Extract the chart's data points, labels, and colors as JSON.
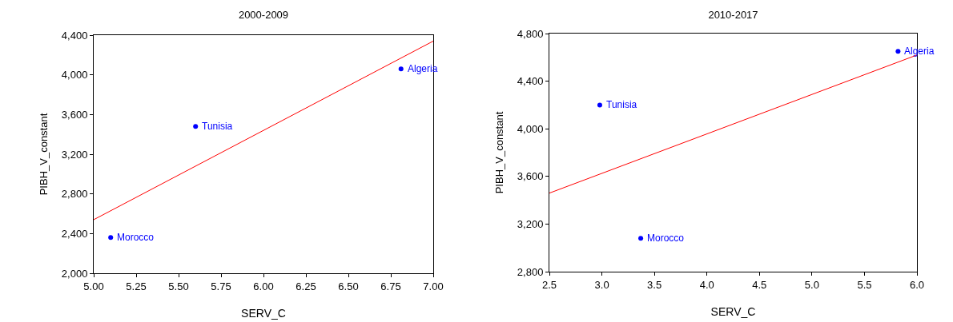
{
  "chart_data": [
    {
      "type": "scatter",
      "title": "2000-2009",
      "xlabel": "SERV_C",
      "ylabel": "PIBH_V_constant",
      "xlim": [
        5,
        7
      ],
      "xticks": [
        {
          "value": 5,
          "label": "5.00"
        },
        {
          "value": 5.25,
          "label": "5.25"
        },
        {
          "value": 5.5,
          "label": "5.50"
        },
        {
          "value": 5.75,
          "label": "5.75"
        },
        {
          "value": 6,
          "label": "6.00"
        },
        {
          "value": 6.25,
          "label": "6.25"
        },
        {
          "value": 6.5,
          "label": "6.50"
        },
        {
          "value": 6.75,
          "label": "6.75"
        },
        {
          "value": 7,
          "label": "7.00"
        }
      ],
      "ylim": [
        2000,
        4400
      ],
      "yticks": [
        {
          "value": 2000,
          "label": "2,000"
        },
        {
          "value": 2400,
          "label": "2,400"
        },
        {
          "value": 2800,
          "label": "2,800"
        },
        {
          "value": 3200,
          "label": "3,200"
        },
        {
          "value": 3600,
          "label": "3,600"
        },
        {
          "value": 4000,
          "label": "4,000"
        },
        {
          "value": 4400,
          "label": "4,400"
        }
      ],
      "series": [
        {
          "type": "scatter",
          "marker": "circle",
          "color": "#0000ff",
          "x": [
            5.1,
            5.6,
            6.81
          ],
          "values": [
            2360,
            3480,
            4060
          ]
        },
        {
          "type": "line",
          "color": "#ff0000",
          "x": [
            5,
            7
          ],
          "values": [
            2540,
            4340
          ]
        }
      ],
      "annotations": [
        {
          "text": "Morocco",
          "x": 5.1,
          "y": 2360
        },
        {
          "text": "Tunisia",
          "x": 5.6,
          "y": 3480
        },
        {
          "text": "Algeria",
          "x": 6.81,
          "y": 4060
        }
      ]
    },
    {
      "type": "scatter",
      "title": "2010-2017",
      "xlabel": "SERV_C",
      "ylabel": "PIBH_V_constant",
      "xlim": [
        2.5,
        6
      ],
      "xticks": [
        {
          "value": 2.5,
          "label": "2.5"
        },
        {
          "value": 3,
          "label": "3.0"
        },
        {
          "value": 3.5,
          "label": "3.5"
        },
        {
          "value": 4,
          "label": "4.0"
        },
        {
          "value": 4.5,
          "label": "4.5"
        },
        {
          "value": 5,
          "label": "5.0"
        },
        {
          "value": 5.5,
          "label": "5.5"
        },
        {
          "value": 6,
          "label": "6.0"
        }
      ],
      "ylim": [
        2800,
        4800
      ],
      "yticks": [
        {
          "value": 2800,
          "label": "2,800"
        },
        {
          "value": 3200,
          "label": "3,200"
        },
        {
          "value": 3600,
          "label": "3,600"
        },
        {
          "value": 4000,
          "label": "4,000"
        },
        {
          "value": 4400,
          "label": "4,400"
        },
        {
          "value": 4800,
          "label": "4,800"
        }
      ],
      "series": [
        {
          "type": "scatter",
          "marker": "circle",
          "color": "#0000ff",
          "x": [
            3.37,
            2.98,
            5.82
          ],
          "values": [
            3080,
            4200,
            4650
          ]
        },
        {
          "type": "line",
          "color": "#ff0000",
          "x": [
            2.5,
            6
          ],
          "values": [
            3460,
            4620
          ]
        }
      ],
      "annotations": [
        {
          "text": "Morocco",
          "x": 3.37,
          "y": 3080
        },
        {
          "text": "Tunisia",
          "x": 2.98,
          "y": 4200
        },
        {
          "text": "Algeria",
          "x": 5.82,
          "y": 4650
        }
      ]
    }
  ]
}
